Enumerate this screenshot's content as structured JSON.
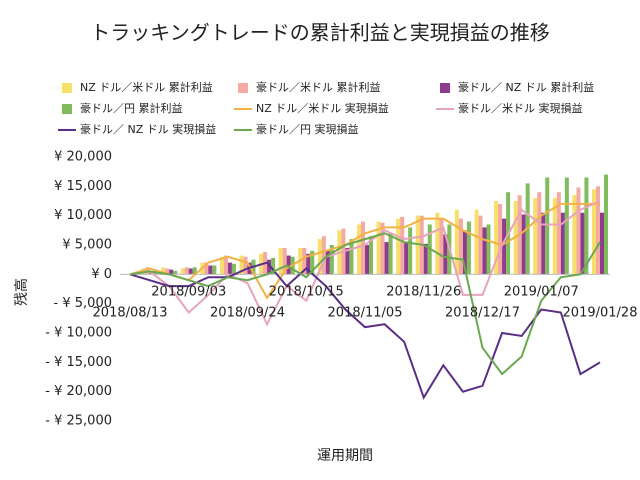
{
  "chart_data": {
    "type": "combo",
    "title": "トラッキングトレードの累計利益と実現損益の推移",
    "x_label": "運用期間",
    "y_label": "残高",
    "categories": [
      "2018/08/13",
      null,
      null,
      "2018/09/03",
      null,
      null,
      "2018/09/24",
      null,
      null,
      "2018/10/15",
      null,
      null,
      "2018/11/05",
      null,
      null,
      "2018/11/26",
      null,
      null,
      "2018/12/17",
      null,
      null,
      "2019/01/07",
      null,
      null,
      "2019/01/28"
    ],
    "ylim": [
      -25000,
      20000
    ],
    "yticks": [
      {
        "value": -25000,
        "label": "- ¥ 25,000"
      },
      {
        "value": -20000,
        "label": "- ¥ 20,000"
      },
      {
        "value": -15000,
        "label": "- ¥ 15,000"
      },
      {
        "value": -10000,
        "label": "- ¥ 10,000"
      },
      {
        "value": -5000,
        "label": "- ¥ 5,000"
      },
      {
        "value": 0,
        "label": "¥ 0"
      },
      {
        "value": 5000,
        "label": "¥ 5,000"
      },
      {
        "value": 10000,
        "label": "¥ 10,000"
      },
      {
        "value": 15000,
        "label": "¥ 15,000"
      },
      {
        "value": 20000,
        "label": "¥ 20,000"
      }
    ],
    "negative_tick_color": "#c00000",
    "grid": false,
    "series": [
      {
        "name": "NZ ドル／米ドル 累計利益",
        "mark": "bar",
        "color": "#f7df6a",
        "values": [
          0,
          1000,
          1200,
          1000,
          2000,
          3000,
          3200,
          3500,
          4500,
          4500,
          6000,
          7500,
          8500,
          9000,
          9500,
          10000,
          10500,
          11000,
          11000,
          12500,
          12500,
          13000,
          13000,
          13500,
          14500
        ]
      },
      {
        "name": "豪ドル／米ドル 累計利益",
        "mark": "bar",
        "color": "#f4a9a3",
        "values": [
          0,
          1200,
          1000,
          1200,
          2000,
          3200,
          3000,
          3800,
          4500,
          4500,
          6500,
          7800,
          9000,
          8800,
          9800,
          10000,
          9500,
          9500,
          10000,
          12000,
          13500,
          14000,
          14000,
          14800,
          15000
        ]
      },
      {
        "name": "豪ドル／ NZ ドル 累計利益",
        "mark": "bar",
        "color": "#8e3c8e",
        "values": [
          0,
          500,
          800,
          1000,
          1500,
          2000,
          2000,
          2500,
          3200,
          3500,
          4000,
          4500,
          5000,
          5500,
          5500,
          5200,
          6800,
          7500,
          8000,
          9500,
          10200,
          10500,
          10500,
          10500,
          10500
        ]
      },
      {
        "name": "豪ドル／円 累計利益",
        "mark": "bar",
        "color": "#80bb5c",
        "values": [
          0,
          800,
          600,
          1200,
          1500,
          1800,
          2500,
          2800,
          3000,
          4000,
          5000,
          6000,
          6500,
          7000,
          8000,
          8500,
          8500,
          9000,
          8500,
          14000,
          15500,
          16500,
          16500,
          16500,
          17000
        ]
      },
      {
        "name": "NZ ドル／米ドル 実現損益",
        "mark": "line",
        "color": "#f3b146",
        "values": [
          0,
          1000,
          0,
          -1000,
          2000,
          3000,
          2000,
          -4000,
          1000,
          3000,
          4000,
          5000,
          7000,
          8000,
          8000,
          9500,
          9500,
          7500,
          6000,
          5000,
          7000,
          10000,
          12000,
          12000,
          12000
        ]
      },
      {
        "name": "豪ドル／米ドル 実現損益",
        "mark": "line",
        "color": "#e7a3bb",
        "values": [
          0,
          500,
          -2000,
          -6500,
          -3500,
          0,
          -1500,
          -8500,
          -2000,
          -4500,
          3000,
          4000,
          5000,
          7500,
          6000,
          6500,
          8000,
          -3500,
          -3500,
          5000,
          11000,
          8500,
          8500,
          11000,
          12500
        ]
      },
      {
        "name": "豪ドル／ NZ ドル 実現損益",
        "mark": "line",
        "color": "#5a2d86",
        "values": [
          0,
          -1000,
          -2000,
          -2000,
          -500,
          -500,
          1000,
          2000,
          -2000,
          1000,
          -2000,
          -6000,
          -9000,
          -8500,
          -11500,
          -21000,
          -15500,
          -20000,
          -19000,
          -10000,
          -10500,
          -6000,
          -6500,
          -17000,
          -15000
        ]
      },
      {
        "name": "豪ドル／円 実現損益",
        "mark": "line",
        "color": "#6aa84f",
        "values": [
          0,
          500,
          0,
          -1000,
          -2000,
          -500,
          -1000,
          0,
          1500,
          -500,
          3000,
          5000,
          6000,
          7000,
          5500,
          5000,
          3000,
          2500,
          -12500,
          -17000,
          -14000,
          -4500,
          -500,
          0,
          5500
        ]
      }
    ]
  }
}
